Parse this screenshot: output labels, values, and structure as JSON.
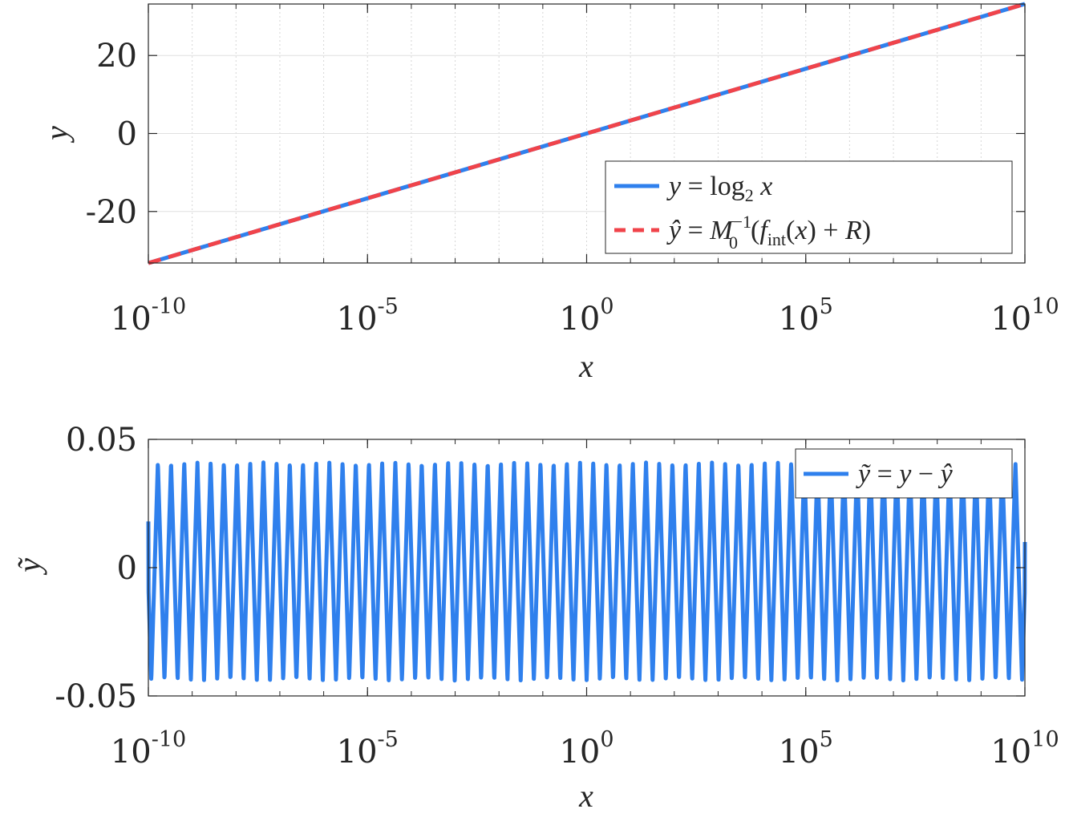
{
  "chart_data": [
    {
      "type": "line",
      "xscale": "log",
      "xlim": [
        1e-10,
        10000000000.0
      ],
      "ylim": [
        -33.2,
        33.2
      ],
      "xticks": [
        1e-10,
        1e-05,
        1,
        100000.0,
        10000000000.0
      ],
      "xtick_labels": [
        {
          "base": "10",
          "exp": "-10"
        },
        {
          "base": "10",
          "exp": "-5"
        },
        {
          "base": "10",
          "exp": "0"
        },
        {
          "base": "10",
          "exp": "5"
        },
        {
          "base": "10",
          "exp": "10"
        }
      ],
      "yticks": [
        -20,
        0,
        20
      ],
      "ytick_labels": [
        "-20",
        "0",
        "20"
      ],
      "xlabel": "x",
      "ylabel": "y",
      "grid": true,
      "legend_position": "bottom-right",
      "series": [
        {
          "name": "y = log₂ x",
          "style": "solid",
          "color": "#2f80ed",
          "x": [
            1e-10,
            1e-05,
            1,
            100000.0,
            10000000000.0
          ],
          "y": [
            -33.22,
            -16.61,
            0,
            16.61,
            33.22
          ]
        },
        {
          "name": "ŷ = M₀⁻¹(f_int(x) + R)",
          "style": "dashed",
          "color": "#f0434a",
          "x": [
            1e-10,
            1e-05,
            1,
            100000.0,
            10000000000.0
          ],
          "y": [
            -33.22,
            -16.61,
            0,
            16.61,
            33.22
          ]
        }
      ]
    },
    {
      "type": "line",
      "xscale": "log",
      "xlim": [
        1e-10,
        10000000000.0
      ],
      "ylim": [
        -0.05,
        0.05
      ],
      "xticks": [
        1e-10,
        1e-05,
        1,
        100000.0,
        10000000000.0
      ],
      "xtick_labels": [
        {
          "base": "10",
          "exp": "-10"
        },
        {
          "base": "10",
          "exp": "-5"
        },
        {
          "base": "10",
          "exp": "0"
        },
        {
          "base": "10",
          "exp": "5"
        },
        {
          "base": "10",
          "exp": "10"
        }
      ],
      "yticks": [
        -0.05,
        0,
        0.05
      ],
      "ytick_labels": [
        "-0.05",
        "0",
        "0.05"
      ],
      "xlabel": "x",
      "ylabel": "ỹ",
      "grid": false,
      "legend_position": "top-right",
      "series": [
        {
          "name": "ỹ = y − ŷ",
          "style": "solid",
          "color": "#2f80ed",
          "oscillation": {
            "periods_per_decade": 3.3219,
            "max": 0.041,
            "min": -0.044,
            "start_value": 0.018,
            "end_value": 0.01
          }
        }
      ]
    }
  ]
}
